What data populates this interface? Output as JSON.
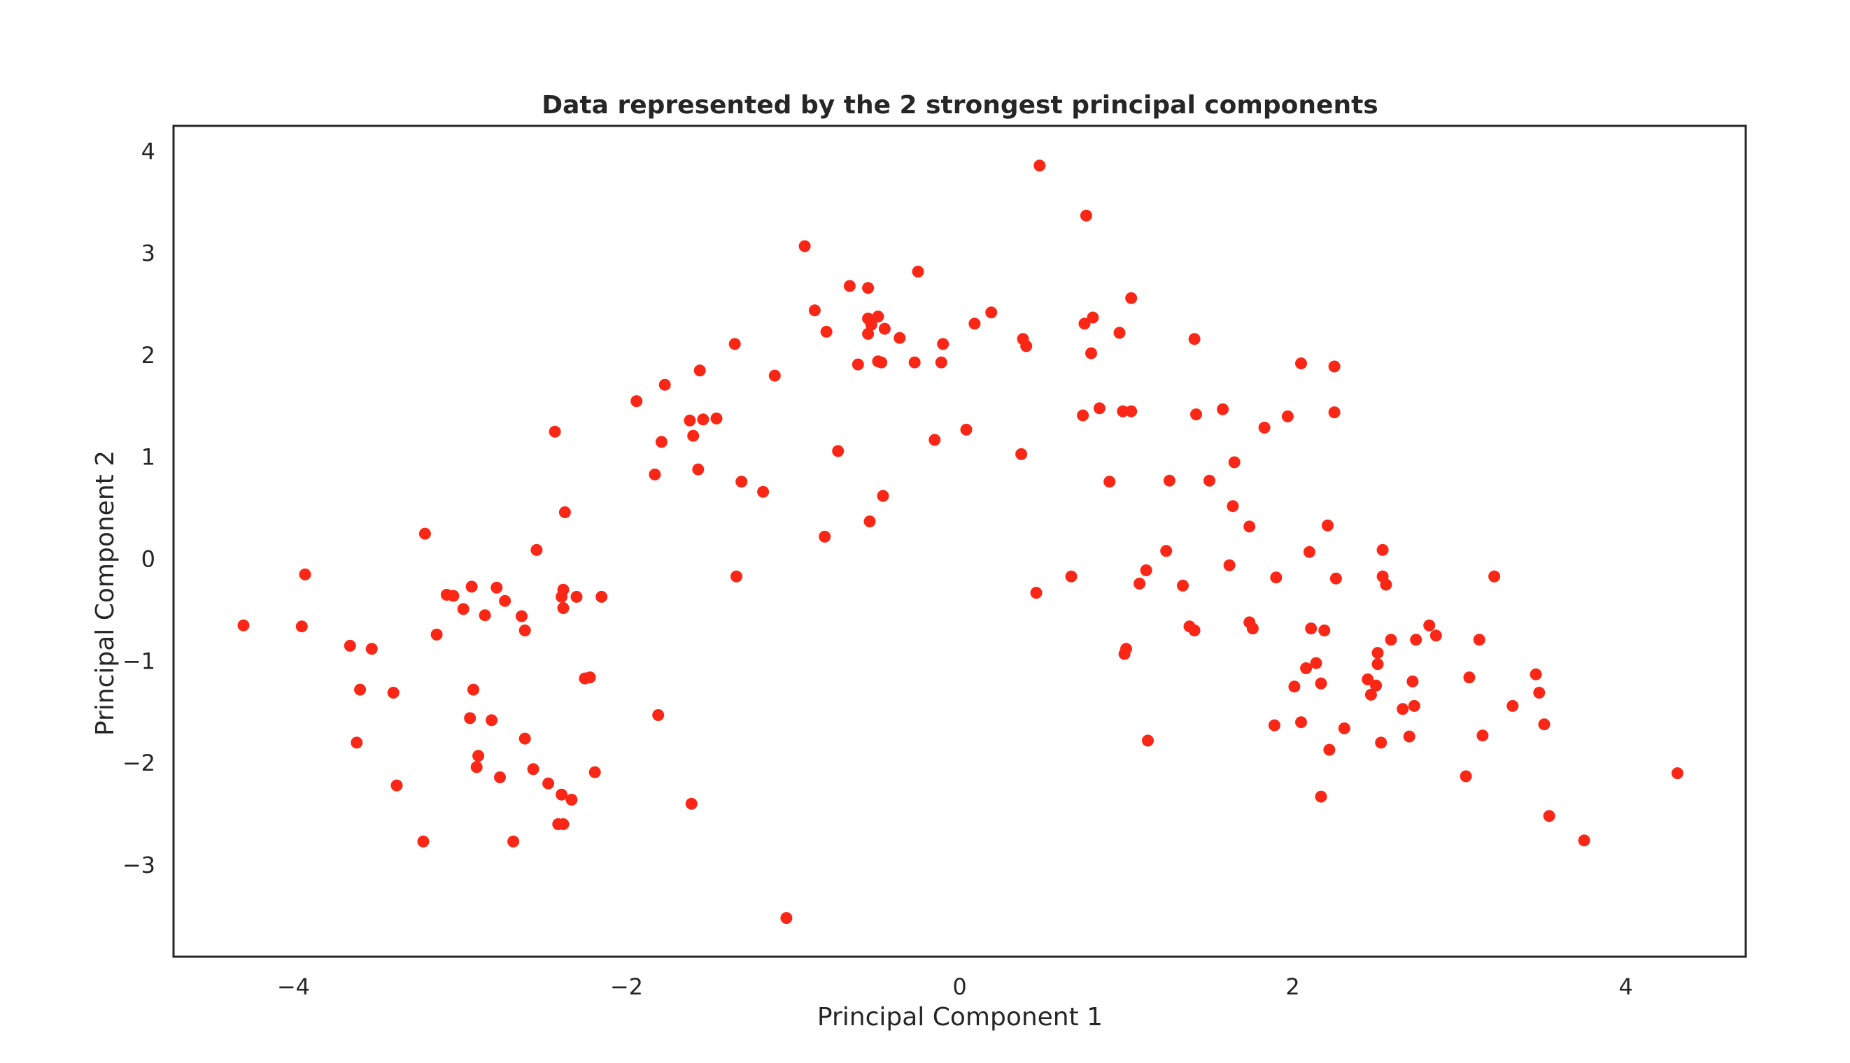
{
  "chart_data": {
    "type": "scatter",
    "title": "Data represented by the 2 strongest principal components",
    "xlabel": "Principal Component 1",
    "ylabel": "Principal Component 2",
    "xlim": [
      -4.72,
      4.72
    ],
    "ylim": [
      -3.9,
      4.25
    ],
    "grid": false,
    "legend": "none",
    "color": "#fa2717",
    "xticks": [
      -4,
      -2,
      0,
      2,
      4
    ],
    "yticks": [
      -3,
      -2,
      -1,
      0,
      1,
      2,
      3,
      4
    ],
    "xtick_labels": [
      "−4",
      "−2",
      "0",
      "2",
      "4"
    ],
    "ytick_labels": [
      "−3",
      "−2",
      "−1",
      "0",
      "1",
      "2",
      "3",
      "4"
    ],
    "points": [
      [
        -4.3,
        -0.65
      ],
      [
        -3.95,
        -0.66
      ],
      [
        -3.93,
        -0.15
      ],
      [
        -3.66,
        -0.85
      ],
      [
        -3.6,
        -1.28
      ],
      [
        -3.62,
        -1.8
      ],
      [
        -3.53,
        -0.88
      ],
      [
        -3.4,
        -1.31
      ],
      [
        -3.38,
        -2.22
      ],
      [
        -3.21,
        0.25
      ],
      [
        -3.22,
        -2.77
      ],
      [
        -3.14,
        -0.74
      ],
      [
        -3.08,
        -0.35
      ],
      [
        -3.04,
        -0.36
      ],
      [
        -2.98,
        -0.49
      ],
      [
        -2.93,
        -0.27
      ],
      [
        -2.94,
        -1.56
      ],
      [
        -2.92,
        -1.28
      ],
      [
        -2.89,
        -1.93
      ],
      [
        -2.9,
        -2.04
      ],
      [
        -2.85,
        -0.55
      ],
      [
        -2.81,
        -1.58
      ],
      [
        -2.78,
        -0.28
      ],
      [
        -2.76,
        -2.14
      ],
      [
        -2.73,
        -0.41
      ],
      [
        -2.68,
        -2.77
      ],
      [
        -2.63,
        -0.56
      ],
      [
        -2.61,
        -0.7
      ],
      [
        -2.61,
        -1.76
      ],
      [
        -2.56,
        -2.06
      ],
      [
        -2.54,
        0.09
      ],
      [
        -2.47,
        -2.2
      ],
      [
        -2.43,
        1.25
      ],
      [
        -2.41,
        -2.6
      ],
      [
        -2.39,
        -2.31
      ],
      [
        -2.39,
        -0.37
      ],
      [
        -2.38,
        -0.3
      ],
      [
        -2.38,
        -0.48
      ],
      [
        -2.37,
        0.46
      ],
      [
        -2.38,
        -2.6
      ],
      [
        -2.33,
        -2.36
      ],
      [
        -2.3,
        -0.37
      ],
      [
        -2.25,
        -1.17
      ],
      [
        -2.22,
        -1.16
      ],
      [
        -2.19,
        -2.09
      ],
      [
        -2.15,
        -0.37
      ],
      [
        -1.94,
        1.55
      ],
      [
        -1.83,
        0.83
      ],
      [
        -1.81,
        -1.53
      ],
      [
        -1.79,
        1.15
      ],
      [
        -1.77,
        1.71
      ],
      [
        -1.62,
        1.36
      ],
      [
        -1.6,
        1.21
      ],
      [
        -1.57,
        0.88
      ],
      [
        -1.56,
        1.85
      ],
      [
        -1.54,
        1.37
      ],
      [
        -1.46,
        1.38
      ],
      [
        -1.61,
        -2.4
      ],
      [
        -1.35,
        2.11
      ],
      [
        -1.34,
        -0.17
      ],
      [
        -1.31,
        0.76
      ],
      [
        -1.18,
        0.66
      ],
      [
        -1.11,
        1.8
      ],
      [
        -1.04,
        -3.52
      ],
      [
        -0.93,
        3.07
      ],
      [
        -0.87,
        2.44
      ],
      [
        -0.81,
        0.22
      ],
      [
        -0.8,
        2.23
      ],
      [
        -0.73,
        1.06
      ],
      [
        -0.66,
        2.68
      ],
      [
        -0.61,
        1.91
      ],
      [
        -0.55,
        2.66
      ],
      [
        -0.55,
        2.36
      ],
      [
        -0.55,
        2.21
      ],
      [
        -0.54,
        0.37
      ],
      [
        -0.53,
        2.3
      ],
      [
        -0.49,
        2.38
      ],
      [
        -0.49,
        1.94
      ],
      [
        -0.47,
        1.93
      ],
      [
        -0.46,
        0.62
      ],
      [
        -0.45,
        2.26
      ],
      [
        -0.36,
        2.17
      ],
      [
        -0.27,
        1.93
      ],
      [
        -0.25,
        2.82
      ],
      [
        -0.15,
        1.17
      ],
      [
        -0.11,
        1.93
      ],
      [
        -0.1,
        2.11
      ],
      [
        0.04,
        1.27
      ],
      [
        0.09,
        2.31
      ],
      [
        0.19,
        2.42
      ],
      [
        0.37,
        1.03
      ],
      [
        0.38,
        2.16
      ],
      [
        0.4,
        2.09
      ],
      [
        0.46,
        -0.33
      ],
      [
        0.48,
        3.86
      ],
      [
        0.67,
        -0.17
      ],
      [
        0.74,
        1.41
      ],
      [
        0.75,
        2.31
      ],
      [
        0.76,
        3.37
      ],
      [
        0.79,
        2.02
      ],
      [
        0.8,
        2.37
      ],
      [
        0.84,
        1.48
      ],
      [
        0.9,
        0.76
      ],
      [
        0.96,
        2.22
      ],
      [
        0.98,
        1.45
      ],
      [
        0.99,
        -0.93
      ],
      [
        1.0,
        -0.88
      ],
      [
        1.03,
        1.45
      ],
      [
        1.03,
        2.56
      ],
      [
        1.08,
        -0.24
      ],
      [
        1.12,
        -0.11
      ],
      [
        1.13,
        -1.78
      ],
      [
        1.24,
        0.08
      ],
      [
        1.26,
        0.77
      ],
      [
        1.34,
        -0.26
      ],
      [
        1.38,
        -0.66
      ],
      [
        1.41,
        -0.7
      ],
      [
        1.41,
        2.16
      ],
      [
        1.42,
        1.42
      ],
      [
        1.5,
        0.77
      ],
      [
        1.58,
        1.47
      ],
      [
        1.62,
        -0.06
      ],
      [
        1.64,
        0.52
      ],
      [
        1.65,
        0.95
      ],
      [
        1.74,
        0.32
      ],
      [
        1.74,
        -0.62
      ],
      [
        1.76,
        -0.68
      ],
      [
        1.83,
        1.29
      ],
      [
        1.89,
        -1.63
      ],
      [
        1.9,
        -0.18
      ],
      [
        1.97,
        1.4
      ],
      [
        2.01,
        -1.25
      ],
      [
        2.05,
        -1.6
      ],
      [
        2.05,
        1.92
      ],
      [
        2.08,
        -1.07
      ],
      [
        2.1,
        0.07
      ],
      [
        2.11,
        -0.68
      ],
      [
        2.14,
        -1.02
      ],
      [
        2.17,
        -1.22
      ],
      [
        2.17,
        -2.33
      ],
      [
        2.19,
        -0.7
      ],
      [
        2.21,
        0.33
      ],
      [
        2.22,
        -1.87
      ],
      [
        2.25,
        1.89
      ],
      [
        2.25,
        1.44
      ],
      [
        2.26,
        -0.19
      ],
      [
        2.31,
        -1.66
      ],
      [
        2.45,
        -1.18
      ],
      [
        2.47,
        -1.33
      ],
      [
        2.5,
        -1.24
      ],
      [
        2.51,
        -1.03
      ],
      [
        2.51,
        -0.92
      ],
      [
        2.53,
        -1.8
      ],
      [
        2.54,
        0.09
      ],
      [
        2.54,
        -0.17
      ],
      [
        2.56,
        -0.25
      ],
      [
        2.59,
        -0.79
      ],
      [
        2.66,
        -1.47
      ],
      [
        2.7,
        -1.74
      ],
      [
        2.72,
        -1.2
      ],
      [
        2.73,
        -1.44
      ],
      [
        2.74,
        -0.79
      ],
      [
        2.82,
        -0.65
      ],
      [
        2.86,
        -0.75
      ],
      [
        3.04,
        -2.13
      ],
      [
        3.06,
        -1.16
      ],
      [
        3.12,
        -0.79
      ],
      [
        3.14,
        -1.73
      ],
      [
        3.21,
        -0.17
      ],
      [
        3.32,
        -1.44
      ],
      [
        3.46,
        -1.13
      ],
      [
        3.48,
        -1.31
      ],
      [
        3.51,
        -1.62
      ],
      [
        3.54,
        -2.52
      ],
      [
        3.75,
        -2.76
      ],
      [
        4.31,
        -2.1
      ]
    ]
  }
}
